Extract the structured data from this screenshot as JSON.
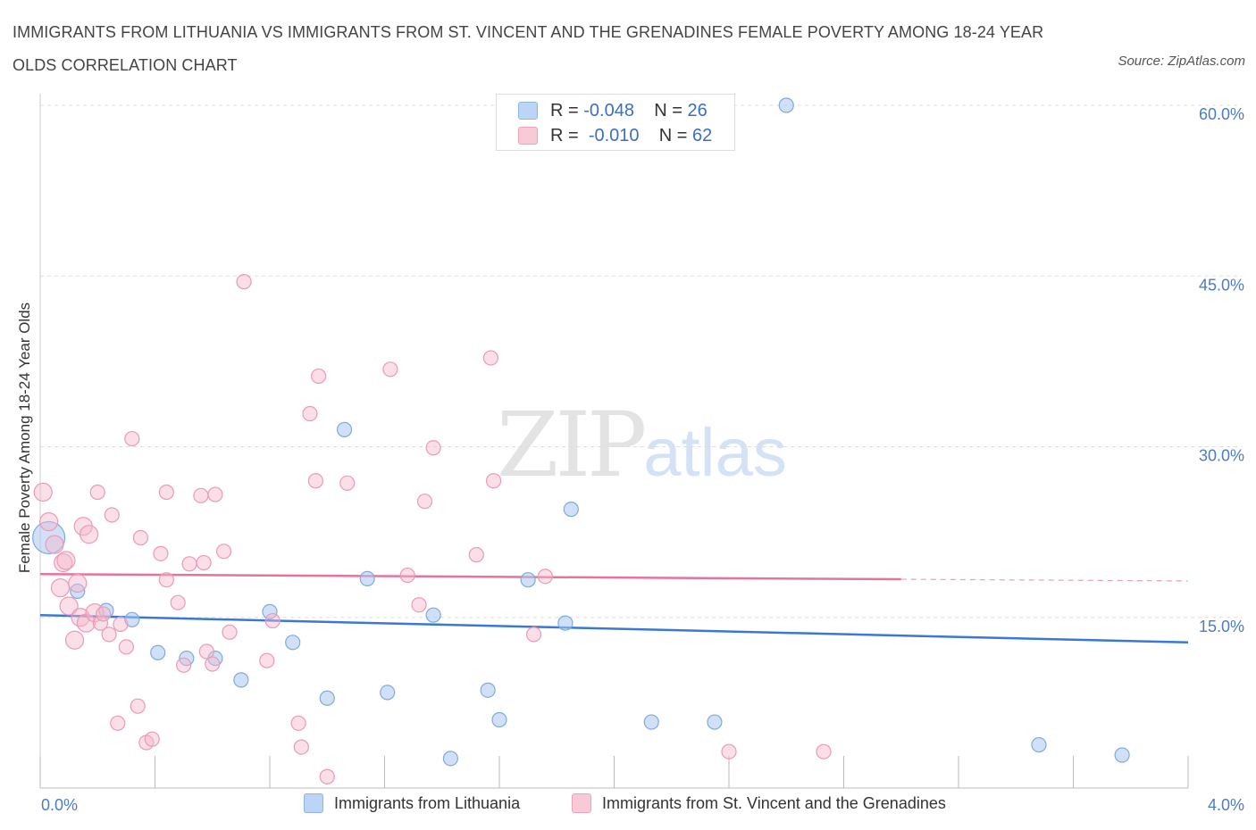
{
  "title": "IMMIGRANTS FROM LITHUANIA VS IMMIGRANTS FROM ST. VINCENT AND THE GRENADINES FEMALE POVERTY AMONG 18-24 YEAR OLDS CORRELATION CHART",
  "source": "Source: ZipAtlas.com",
  "watermark": {
    "zip": "ZIP",
    "atlas": "atlas"
  },
  "colors": {
    "blue": "#a9c8f0",
    "blue_line": "#3a78d4",
    "pink": "#f5b8cb",
    "pink_line": "#e8739a"
  },
  "legend": [
    {
      "r_label": "R =",
      "r_value": "-0.048",
      "n_label": "N =",
      "n_value": "26"
    },
    {
      "r_label": "R =",
      "r_value": "-0.010",
      "n_label": "N =",
      "n_value": "62"
    }
  ],
  "chart_data": {
    "type": "scatter",
    "title": "IMMIGRANTS FROM LITHUANIA VS IMMIGRANTS FROM ST. VINCENT AND THE GRENADINES FEMALE POVERTY AMONG 18-24 YEAR OLDS CORRELATION CHART",
    "xlabel": "",
    "ylabel": "Female Poverty Among 18-24 Year Olds",
    "xlim": [
      0,
      4.0
    ],
    "ylim": [
      0,
      60.0
    ],
    "x_ticks": [
      "0.0%",
      "4.0%"
    ],
    "y_ticks": [
      "15.0%",
      "30.0%",
      "45.0%",
      "60.0%"
    ],
    "y_tick_values": [
      15,
      30,
      45,
      60
    ],
    "grid": true,
    "legend_position": "top-center",
    "series": [
      {
        "name": "Immigrants from Lithuania",
        "color": "#a9c8f0",
        "trend": {
          "x": [
            0.0,
            4.0
          ],
          "y": [
            15.2,
            12.8
          ],
          "dashed_from": null
        },
        "points": [
          {
            "x": 0.03,
            "y": 22.0,
            "big": true
          },
          {
            "x": 0.13,
            "y": 17.3
          },
          {
            "x": 0.23,
            "y": 15.6
          },
          {
            "x": 0.32,
            "y": 14.8
          },
          {
            "x": 0.41,
            "y": 11.9
          },
          {
            "x": 0.51,
            "y": 11.4
          },
          {
            "x": 0.61,
            "y": 11.4
          },
          {
            "x": 0.7,
            "y": 9.5
          },
          {
            "x": 0.8,
            "y": 15.5
          },
          {
            "x": 0.88,
            "y": 12.8
          },
          {
            "x": 1.0,
            "y": 7.9
          },
          {
            "x": 1.06,
            "y": 31.5
          },
          {
            "x": 1.14,
            "y": 18.4
          },
          {
            "x": 1.21,
            "y": 8.4
          },
          {
            "x": 1.37,
            "y": 15.2
          },
          {
            "x": 1.43,
            "y": 2.6
          },
          {
            "x": 1.56,
            "y": 8.6
          },
          {
            "x": 1.6,
            "y": 6.0
          },
          {
            "x": 1.7,
            "y": 18.3
          },
          {
            "x": 1.83,
            "y": 14.5
          },
          {
            "x": 1.85,
            "y": 24.5
          },
          {
            "x": 2.13,
            "y": 5.8
          },
          {
            "x": 2.35,
            "y": 5.8
          },
          {
            "x": 2.6,
            "y": 60.0
          },
          {
            "x": 3.48,
            "y": 3.8
          },
          {
            "x": 3.77,
            "y": 2.9
          }
        ]
      },
      {
        "name": "Immigrants from St. Vincent and the Grenadines",
        "color": "#f5b8cb",
        "trend": {
          "x": [
            0.0,
            4.0
          ],
          "y": [
            18.8,
            18.2
          ],
          "dashed_from": 3.0
        },
        "points": [
          {
            "x": 0.01,
            "y": 26.0
          },
          {
            "x": 0.03,
            "y": 23.4
          },
          {
            "x": 0.05,
            "y": 21.4
          },
          {
            "x": 0.07,
            "y": 17.6
          },
          {
            "x": 0.08,
            "y": 19.8
          },
          {
            "x": 0.09,
            "y": 20.0
          },
          {
            "x": 0.1,
            "y": 16.0
          },
          {
            "x": 0.12,
            "y": 13.0
          },
          {
            "x": 0.13,
            "y": 18.0
          },
          {
            "x": 0.14,
            "y": 15.0
          },
          {
            "x": 0.15,
            "y": 23.0
          },
          {
            "x": 0.16,
            "y": 14.5
          },
          {
            "x": 0.17,
            "y": 22.3
          },
          {
            "x": 0.19,
            "y": 15.4
          },
          {
            "x": 0.2,
            "y": 26.0
          },
          {
            "x": 0.21,
            "y": 14.5
          },
          {
            "x": 0.22,
            "y": 15.3
          },
          {
            "x": 0.24,
            "y": 13.5
          },
          {
            "x": 0.25,
            "y": 24.0
          },
          {
            "x": 0.27,
            "y": 5.7
          },
          {
            "x": 0.28,
            "y": 14.4
          },
          {
            "x": 0.3,
            "y": 12.4
          },
          {
            "x": 0.32,
            "y": 30.7
          },
          {
            "x": 0.34,
            "y": 7.2
          },
          {
            "x": 0.35,
            "y": 22.0
          },
          {
            "x": 0.37,
            "y": 4.0
          },
          {
            "x": 0.39,
            "y": 4.3
          },
          {
            "x": 0.42,
            "y": 20.6
          },
          {
            "x": 0.44,
            "y": 18.3
          },
          {
            "x": 0.44,
            "y": 26.0
          },
          {
            "x": 0.48,
            "y": 16.3
          },
          {
            "x": 0.5,
            "y": 10.8
          },
          {
            "x": 0.52,
            "y": 19.7
          },
          {
            "x": 0.56,
            "y": 25.7
          },
          {
            "x": 0.57,
            "y": 19.8
          },
          {
            "x": 0.58,
            "y": 12.0
          },
          {
            "x": 0.6,
            "y": 10.9
          },
          {
            "x": 0.61,
            "y": 25.8
          },
          {
            "x": 0.64,
            "y": 20.8
          },
          {
            "x": 0.66,
            "y": 13.7
          },
          {
            "x": 0.71,
            "y": 44.5
          },
          {
            "x": 0.79,
            "y": 11.2
          },
          {
            "x": 0.81,
            "y": 14.7
          },
          {
            "x": 0.9,
            "y": 5.7
          },
          {
            "x": 0.91,
            "y": 3.6
          },
          {
            "x": 0.94,
            "y": 32.9
          },
          {
            "x": 0.96,
            "y": 27.0
          },
          {
            "x": 0.97,
            "y": 36.2
          },
          {
            "x": 1.0,
            "y": 1.0
          },
          {
            "x": 1.07,
            "y": 26.8
          },
          {
            "x": 1.22,
            "y": 36.8
          },
          {
            "x": 1.28,
            "y": 18.7
          },
          {
            "x": 1.32,
            "y": 16.1
          },
          {
            "x": 1.34,
            "y": 25.2
          },
          {
            "x": 1.37,
            "y": 29.9
          },
          {
            "x": 1.52,
            "y": 20.5
          },
          {
            "x": 1.57,
            "y": 37.8
          },
          {
            "x": 1.58,
            "y": 27.0
          },
          {
            "x": 1.72,
            "y": 13.5
          },
          {
            "x": 1.76,
            "y": 18.6
          },
          {
            "x": 2.4,
            "y": 3.2
          },
          {
            "x": 2.73,
            "y": 3.2
          }
        ]
      }
    ]
  }
}
